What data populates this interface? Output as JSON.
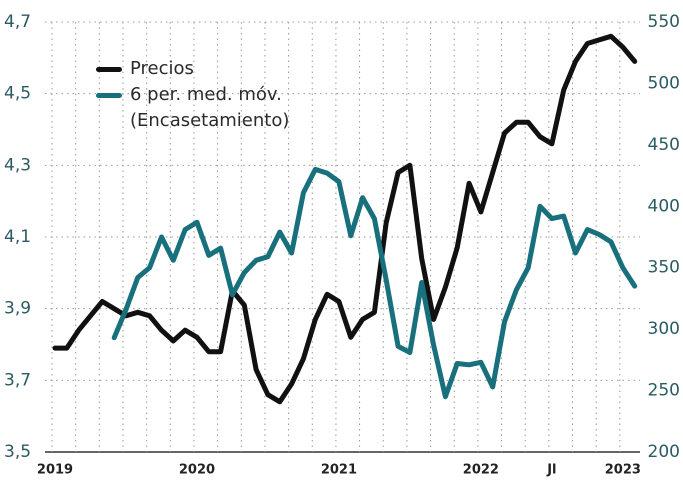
{
  "chart_data": {
    "type": "line",
    "categories": [
      "2019",
      null,
      null,
      null,
      null,
      null,
      null,
      null,
      null,
      null,
      null,
      null,
      "2020",
      null,
      null,
      null,
      null,
      null,
      null,
      null,
      null,
      null,
      null,
      null,
      "2021",
      null,
      null,
      null,
      null,
      null,
      null,
      null,
      null,
      null,
      null,
      null,
      "2022",
      null,
      null,
      null,
      null,
      null,
      "Jl",
      null,
      null,
      null,
      null,
      null,
      "2023",
      null
    ],
    "series": [
      {
        "name": "Precios",
        "color": "#111111",
        "axis": "y",
        "values": [
          3.79,
          3.79,
          3.84,
          3.88,
          3.92,
          3.9,
          3.88,
          3.89,
          3.88,
          3.84,
          3.81,
          3.84,
          3.82,
          3.78,
          3.78,
          3.95,
          3.91,
          3.73,
          3.66,
          3.64,
          3.69,
          3.76,
          3.87,
          3.94,
          3.92,
          3.82,
          3.87,
          3.89,
          4.14,
          4.28,
          4.3,
          4.04,
          3.87,
          3.96,
          4.07,
          4.25,
          4.17,
          4.28,
          4.39,
          4.42,
          4.42,
          4.38,
          4.36,
          4.51,
          4.59,
          4.64,
          4.65,
          4.66,
          4.63,
          4.59
        ]
      },
      {
        "name": "6 per. med. móv. (Encasetamiento)",
        "color": "#17707c",
        "axis": "y2",
        "values": [
          null,
          null,
          null,
          null,
          null,
          293,
          316,
          342,
          350,
          375,
          356,
          381,
          387,
          360,
          366,
          328,
          346,
          356,
          359,
          379,
          362,
          411,
          430,
          427,
          420,
          376,
          407,
          390,
          340,
          286,
          281,
          338,
          287,
          245,
          272,
          271,
          273,
          253,
          306,
          332,
          350,
          400,
          390,
          392,
          362,
          381,
          377,
          371,
          350,
          335
        ]
      }
    ],
    "ylim": [
      3.5,
      4.7
    ],
    "yticks": [
      {
        "value": 3.5,
        "label": "3,5"
      },
      {
        "value": 3.7,
        "label": "3,7"
      },
      {
        "value": 3.9,
        "label": "3,9"
      },
      {
        "value": 4.1,
        "label": "4,1"
      },
      {
        "value": 4.3,
        "label": "4,3"
      },
      {
        "value": 4.5,
        "label": "4,5"
      },
      {
        "value": 4.7,
        "label": "4,7"
      }
    ],
    "y2lim": [
      200,
      550
    ],
    "y2ticks": [
      200,
      250,
      300,
      350,
      400,
      450,
      500,
      550
    ],
    "grid": true,
    "legend": "upper left"
  }
}
